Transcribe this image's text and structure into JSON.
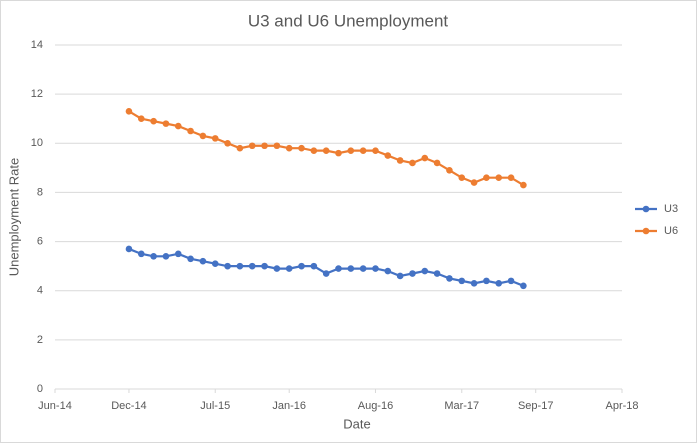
{
  "chart_data": {
    "type": "line",
    "title": "U3 and U6 Unemployment",
    "x_label": "Date",
    "y_label": "Unemployment Rate",
    "x": [
      "2014-12",
      "2015-01",
      "2015-02",
      "2015-03",
      "2015-04",
      "2015-05",
      "2015-06",
      "2015-07",
      "2015-08",
      "2015-09",
      "2015-10",
      "2015-11",
      "2015-12",
      "2016-01",
      "2016-02",
      "2016-03",
      "2016-04",
      "2016-05",
      "2016-06",
      "2016-07",
      "2016-08",
      "2016-09",
      "2016-10",
      "2016-11",
      "2016-12",
      "2017-01",
      "2017-02",
      "2017-03",
      "2017-04",
      "2017-05",
      "2017-06",
      "2017-07",
      "2017-08"
    ],
    "series": [
      {
        "name": "U3",
        "color": "#4472c4",
        "values": [
          5.7,
          5.5,
          5.4,
          5.4,
          5.5,
          5.3,
          5.2,
          5.1,
          5.0,
          5.0,
          5.0,
          5.0,
          4.9,
          4.9,
          5.0,
          5.0,
          4.7,
          4.9,
          4.9,
          4.9,
          4.9,
          4.8,
          4.6,
          4.7,
          4.8,
          4.7,
          4.5,
          4.4,
          4.3,
          4.4,
          4.3,
          4.4,
          4.2
        ]
      },
      {
        "name": "U6",
        "color": "#ed7d31",
        "values": [
          11.3,
          11.0,
          10.9,
          10.8,
          10.7,
          10.5,
          10.3,
          10.2,
          10.0,
          9.8,
          9.9,
          9.9,
          9.9,
          9.8,
          9.8,
          9.7,
          9.7,
          9.6,
          9.7,
          9.7,
          9.7,
          9.5,
          9.3,
          9.2,
          9.4,
          9.2,
          8.9,
          8.6,
          8.4,
          8.6,
          8.6,
          8.6,
          8.3
        ]
      }
    ],
    "xlim": [
      "2014-06",
      "2018-04"
    ],
    "xticks": [
      {
        "value": "2014-06",
        "label": "Jun-14"
      },
      {
        "value": "2014-12",
        "label": "Dec-14"
      },
      {
        "value": "2015-07",
        "label": "Jul-15"
      },
      {
        "value": "2016-01",
        "label": "Jan-16"
      },
      {
        "value": "2016-08",
        "label": "Aug-16"
      },
      {
        "value": "2017-03",
        "label": "Mar-17"
      },
      {
        "value": "2017-09",
        "label": "Sep-17"
      },
      {
        "value": "2018-04",
        "label": "Apr-18"
      }
    ],
    "ylim": [
      0,
      14
    ],
    "yticks": [
      0,
      2,
      4,
      6,
      8,
      10,
      12,
      14
    ],
    "grid": true,
    "legend": "right"
  }
}
